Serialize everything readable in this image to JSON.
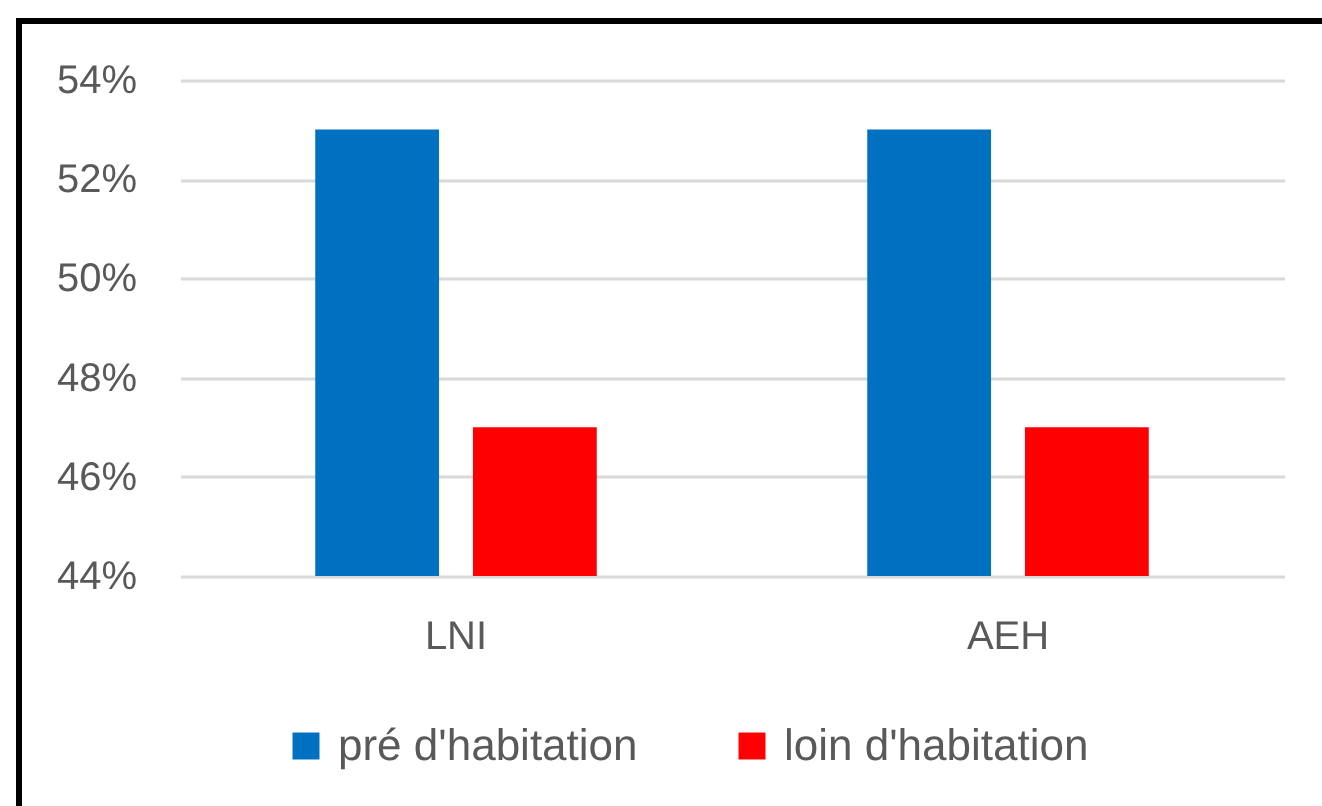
{
  "chart_data": {
    "type": "bar",
    "categories": [
      "LNI",
      "AEH"
    ],
    "series": [
      {
        "name": "pré d'habitation",
        "color": "#0070c0",
        "values": [
          53,
          53
        ]
      },
      {
        "name": "loin d'habitation",
        "color": "#ff0000",
        "values": [
          47,
          47
        ]
      }
    ],
    "ylim": [
      44,
      54
    ],
    "yticks": [
      {
        "value": 44,
        "label": "44%"
      },
      {
        "value": 46,
        "label": "46%"
      },
      {
        "value": 48,
        "label": "48%"
      },
      {
        "value": 50,
        "label": "50%"
      },
      {
        "value": 52,
        "label": "52%"
      },
      {
        "value": 54,
        "label": "54%"
      }
    ],
    "grid": "y",
    "legend": "bottom"
  }
}
